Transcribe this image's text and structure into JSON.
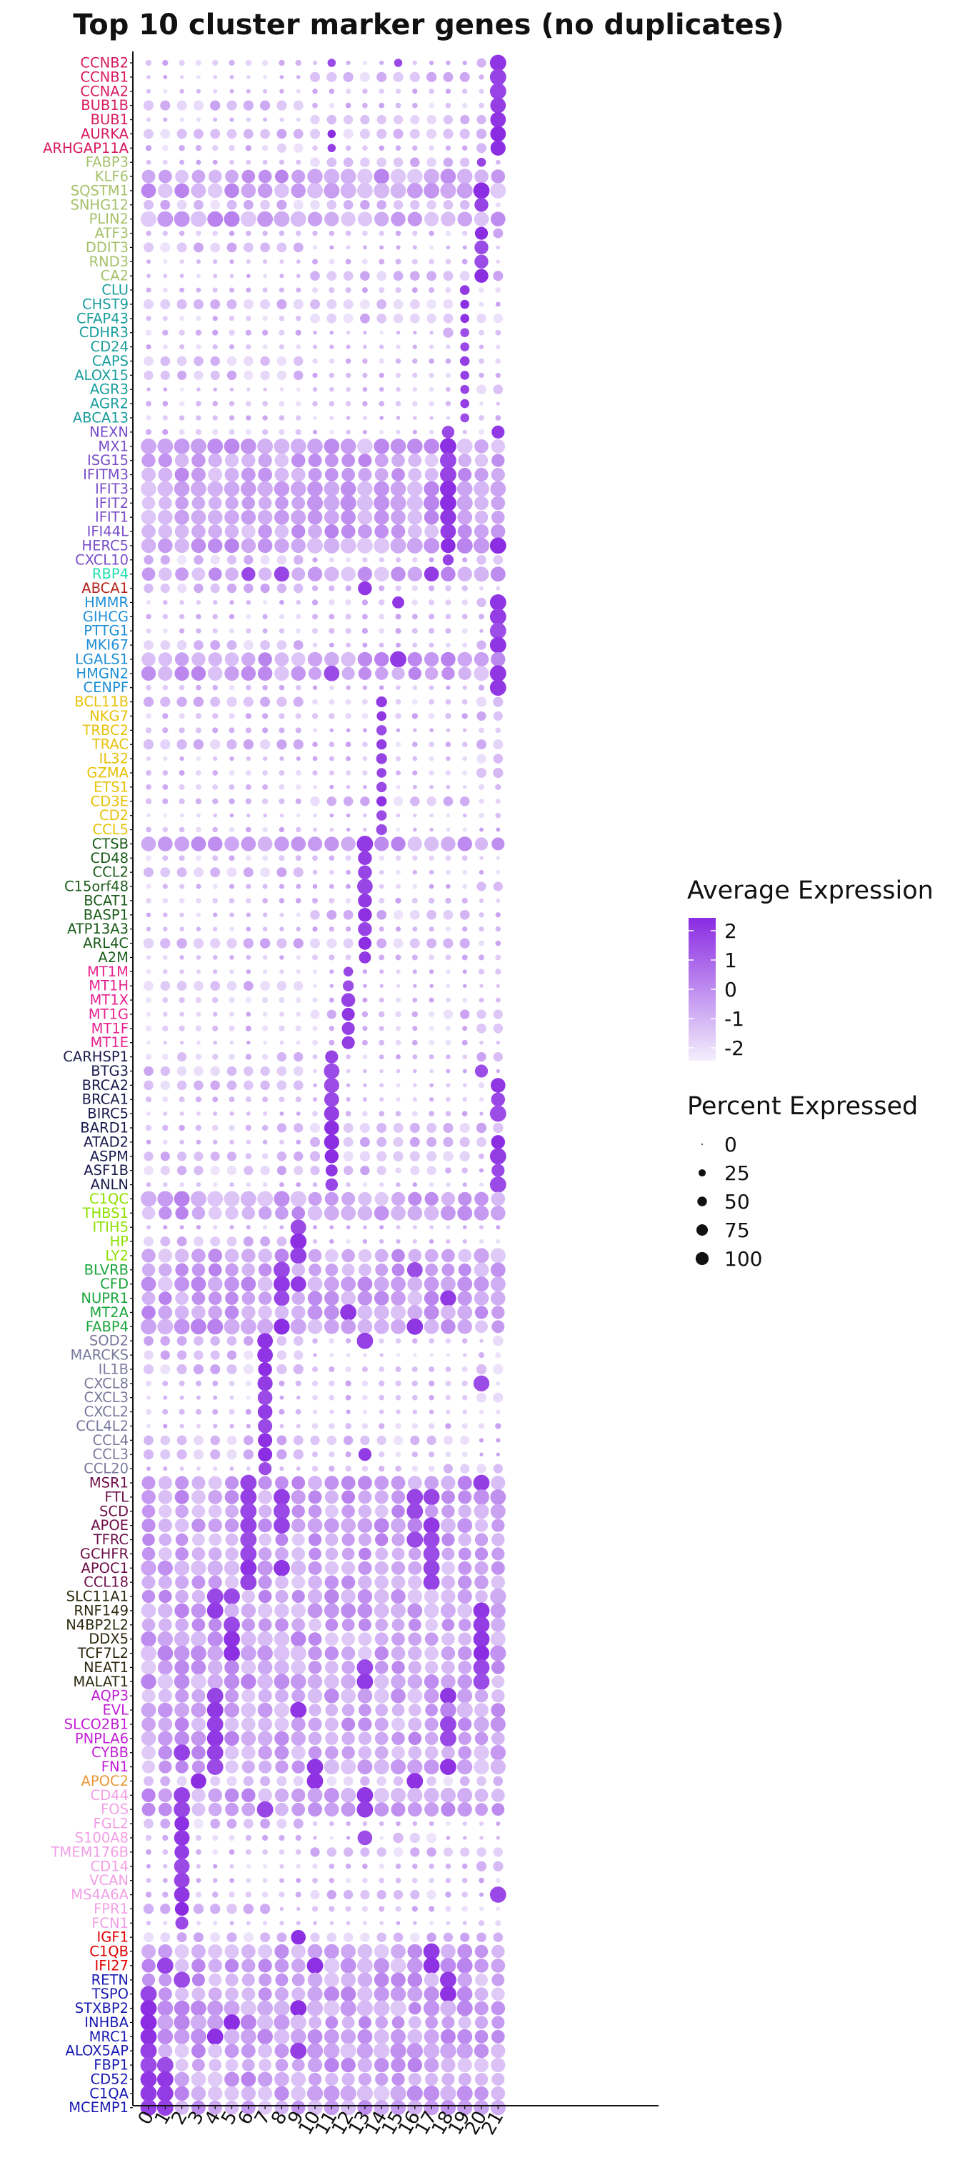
{
  "chart_data": {
    "type": "dotplot",
    "title": "Top 10 cluster marker genes (no duplicates)",
    "xlabel": "",
    "ylabel": "",
    "clusters": [
      "0",
      "1",
      "2",
      "3",
      "4",
      "5",
      "6",
      "7",
      "8",
      "9",
      "10",
      "11",
      "12",
      "13",
      "14",
      "15",
      "16",
      "17",
      "18",
      "19",
      "20",
      "21"
    ],
    "gene_groups": [
      {
        "color": "#d81b60",
        "genes": [
          "CCNB2",
          "CCNB1",
          "CCNA2",
          "BUB1B",
          "BUB1",
          "AURKA",
          "ARHGAP11A"
        ]
      },
      {
        "color": "#a6c26b",
        "genes": [
          "FABP3",
          "KLF6",
          "SQSTM1",
          "SNHG12",
          "PLIN2",
          "ATF3",
          "DDIT3",
          "RND3",
          "CA2"
        ]
      },
      {
        "color": "#1b9e9e",
        "genes": [
          "CLU",
          "CHST9",
          "CFAP43",
          "CDHR3",
          "CD24",
          "CAPS",
          "ALOX15",
          "AGR3",
          "AGR2",
          "ABCA13"
        ]
      },
      {
        "color": "#7a4ec9",
        "genes": [
          "NEXN",
          "MX1",
          "ISG15",
          "IFITM3",
          "IFIT3",
          "IFIT2",
          "IFIT1",
          "IFI44L",
          "HERC5",
          "CXCL10"
        ]
      },
      {
        "color": "#22e0b0",
        "genes": [
          "RBP4"
        ]
      },
      {
        "color": "#b3261e",
        "genes": [
          "ABCA1"
        ]
      },
      {
        "color": "#1e8fd6",
        "genes": [
          "HMMR",
          "GIHCG",
          "PTTG1",
          "MKI67",
          "LGALS1",
          "HMGN2",
          "CENPF"
        ]
      },
      {
        "color": "#e8c20b",
        "genes": [
          "BCL11B",
          "NKG7",
          "TRBC2",
          "TRAC",
          "IL32",
          "GZMA",
          "ETS1",
          "CD3E",
          "CD2",
          "CCL5"
        ]
      },
      {
        "color": "#1a5c1a",
        "genes": [
          "CTSB",
          "CD48",
          "CCL2",
          "C15orf48",
          "BCAT1",
          "BASP1",
          "ATP13A3",
          "ARL4C",
          "A2M"
        ]
      },
      {
        "color": "#e8238f",
        "genes": [
          "MT1M",
          "MT1H",
          "MT1X",
          "MT1G",
          "MT1F",
          "MT1E"
        ]
      },
      {
        "color": "#1a1a4e",
        "genes": [
          "CARHSP1",
          "BTG3",
          "BRCA2",
          "BRCA1",
          "BIRC5",
          "BARD1",
          "ATAD2",
          "ASPM",
          "ASF1B",
          "ANLN"
        ]
      },
      {
        "color": "#8ee000",
        "genes": [
          "C1QC",
          "THBS1",
          "ITIH5",
          "HP",
          "LY2"
        ]
      },
      {
        "color": "#1aa63c",
        "genes": [
          "BLVRB",
          "CFD",
          "NUPR1",
          "MT2A",
          "FABP4"
        ]
      },
      {
        "color": "#7a7a9e",
        "genes": [
          "SOD2",
          "MARCKS",
          "IL1B",
          "CXCL8",
          "CXCL3",
          "CXCL2",
          "CCL4L2",
          "CCL4",
          "CCL3",
          "CCL20"
        ]
      },
      {
        "color": "#6e0f4a",
        "genes": [
          "MSR1",
          "FTL",
          "SCD",
          "APOE",
          "TFRC",
          "GCHFR",
          "APOC1",
          "CCL18"
        ]
      },
      {
        "color": "#2d2a10",
        "genes": [
          "SLC11A1",
          "RNF149",
          "N4BP2L2",
          "DDX5",
          "TCF7L2",
          "NEAT1",
          "MALAT1"
        ]
      },
      {
        "color": "#c21fd6",
        "genes": [
          "AQP3",
          "EVL",
          "SLCO2B1",
          "PNPLA6",
          "CYBB",
          "FN1"
        ]
      },
      {
        "color": "#e89a3a",
        "genes": [
          "APOC2"
        ]
      },
      {
        "color": "#f2a0e6",
        "genes": [
          "CD44",
          "FOS",
          "FGL2",
          "S100A8",
          "TMEM176B",
          "CD14",
          "VCAN",
          "MS4A6A",
          "FPR1",
          "FCN1"
        ]
      },
      {
        "color": "#e00000",
        "genes": [
          "IGF1",
          "C1QB",
          "IFI27"
        ]
      },
      {
        "color": "#1a1ab3",
        "genes": [
          "RETN",
          "TSPO",
          "STXBP2",
          "INHBA",
          "MRC1",
          "ALOX5AP",
          "FBP1",
          "CD52",
          "C1QA",
          "MCEMP1"
        ]
      }
    ],
    "highlights": {
      "CCNB2": [
        [
          21,
          100
        ],
        [
          11,
          20
        ],
        [
          15,
          20
        ]
      ],
      "CCNB1": [
        [
          21,
          100
        ]
      ],
      "CCNA2": [
        [
          21,
          100
        ]
      ],
      "BUB1B": [
        [
          21,
          90
        ]
      ],
      "BUB1": [
        [
          21,
          90
        ]
      ],
      "AURKA": [
        [
          21,
          90
        ],
        [
          11,
          20
        ]
      ],
      "ARHGAP11A": [
        [
          21,
          85
        ],
        [
          11,
          20
        ]
      ],
      "FABP3": [
        [
          20,
          25
        ]
      ],
      "SQSTM1": [
        [
          20,
          100
        ]
      ],
      "SNHG12": [
        [
          20,
          70
        ]
      ],
      "ATF3": [
        [
          20,
          60
        ]
      ],
      "DDIT3": [
        [
          20,
          70
        ]
      ],
      "RND3": [
        [
          20,
          70
        ]
      ],
      "CA2": [
        [
          20,
          70
        ]
      ],
      "CLU": [
        [
          19,
          30
        ]
      ],
      "CHST9": [
        [
          19,
          25
        ]
      ],
      "CFAP43": [
        [
          19,
          25
        ]
      ],
      "CDHR3": [
        [
          19,
          25
        ]
      ],
      "CD24": [
        [
          19,
          25
        ]
      ],
      "CAPS": [
        [
          19,
          30
        ]
      ],
      "ALOX15": [
        [
          19,
          25
        ]
      ],
      "AGR3": [
        [
          19,
          25
        ]
      ],
      "AGR2": [
        [
          19,
          25
        ]
      ],
      "ABCA13": [
        [
          19,
          25
        ]
      ],
      "NEXN": [
        [
          18,
          55
        ],
        [
          21,
          60
        ]
      ],
      "MX1": [
        [
          18,
          100
        ]
      ],
      "ISG15": [
        [
          18,
          100
        ]
      ],
      "IFITM3": [
        [
          18,
          100
        ]
      ],
      "IFIT3": [
        [
          18,
          100
        ]
      ],
      "IFIT2": [
        [
          18,
          100
        ]
      ],
      "IFIT1": [
        [
          18,
          95
        ]
      ],
      "IFI44L": [
        [
          18,
          90
        ]
      ],
      "HERC5": [
        [
          18,
          80
        ],
        [
          21,
          100
        ]
      ],
      "CXCL10": [
        [
          18,
          40
        ]
      ],
      "RBP4": [
        [
          8,
          85
        ],
        [
          17,
          80
        ],
        [
          6,
          70
        ]
      ],
      "ABCA1": [
        [
          13,
          70
        ]
      ],
      "HMMR": [
        [
          21,
          100
        ],
        [
          15,
          50
        ]
      ],
      "GIHCG": [
        [
          21,
          100
        ]
      ],
      "PTTG1": [
        [
          21,
          100
        ]
      ],
      "MKI67": [
        [
          21,
          100
        ]
      ],
      "LGALS1": [
        [
          15,
          100
        ]
      ],
      "HMGN2": [
        [
          21,
          100
        ],
        [
          11,
          90
        ]
      ],
      "CENPF": [
        [
          21,
          100
        ]
      ],
      "BCL11B": [
        [
          14,
          40
        ]
      ],
      "NKG7": [
        [
          14,
          30
        ]
      ],
      "TRBC2": [
        [
          14,
          35
        ]
      ],
      "TRAC": [
        [
          14,
          35
        ]
      ],
      "IL32": [
        [
          14,
          40
        ]
      ],
      "GZMA": [
        [
          14,
          30
        ]
      ],
      "ETS1": [
        [
          14,
          35
        ]
      ],
      "CD3E": [
        [
          14,
          35
        ]
      ],
      "CD2": [
        [
          14,
          35
        ]
      ],
      "CCL5": [
        [
          14,
          40
        ]
      ],
      "CTSB": [
        [
          13,
          100
        ]
      ],
      "CD48": [
        [
          13,
          70
        ]
      ],
      "CCL2": [
        [
          13,
          70
        ]
      ],
      "C15orf48": [
        [
          13,
          90
        ]
      ],
      "BCAT1": [
        [
          13,
          70
        ]
      ],
      "BASP1": [
        [
          13,
          70
        ]
      ],
      "ATP13A3": [
        [
          13,
          70
        ]
      ],
      "ARL4C": [
        [
          13,
          60
        ]
      ],
      "A2M": [
        [
          13,
          50
        ]
      ],
      "MT1M": [
        [
          12,
          30
        ]
      ],
      "MT1H": [
        [
          12,
          40
        ]
      ],
      "MT1X": [
        [
          12,
          70
        ]
      ],
      "MT1G": [
        [
          12,
          60
        ]
      ],
      "MT1F": [
        [
          12,
          60
        ]
      ],
      "MT1E": [
        [
          12,
          60
        ]
      ],
      "CARHSP1": [
        [
          11,
          60
        ]
      ],
      "BTG3": [
        [
          11,
          90
        ],
        [
          20,
          60
        ]
      ],
      "BRCA2": [
        [
          11,
          85
        ],
        [
          21,
          80
        ]
      ],
      "BRCA1": [
        [
          11,
          80
        ],
        [
          21,
          70
        ]
      ],
      "BIRC5": [
        [
          11,
          85
        ],
        [
          21,
          100
        ]
      ],
      "BARD1": [
        [
          11,
          80
        ]
      ],
      "ATAD2": [
        [
          11,
          85
        ],
        [
          21,
          70
        ]
      ],
      "ASPM": [
        [
          11,
          70
        ],
        [
          21,
          100
        ]
      ],
      "ASF1B": [
        [
          11,
          50
        ],
        [
          21,
          60
        ]
      ],
      "ANLN": [
        [
          11,
          55
        ],
        [
          21,
          100
        ]
      ],
      "HP": [
        [
          9,
          100
        ]
      ],
      "ITIH5": [
        [
          9,
          90
        ]
      ],
      "LY2": [
        [
          9,
          100
        ]
      ],
      "BLVRB": [
        [
          8,
          100
        ],
        [
          16,
          90
        ]
      ],
      "CFD": [
        [
          8,
          100
        ],
        [
          9,
          90
        ]
      ],
      "NUPR1": [
        [
          8,
          90
        ],
        [
          18,
          95
        ]
      ],
      "MT2A": [
        [
          12,
          100
        ]
      ],
      "FABP4": [
        [
          16,
          100
        ],
        [
          8,
          95
        ]
      ],
      "SOD2": [
        [
          7,
          90
        ],
        [
          13,
          100
        ]
      ],
      "MARCKS": [
        [
          7,
          90
        ]
      ],
      "IL1B": [
        [
          7,
          70
        ]
      ],
      "CXCL8": [
        [
          7,
          85
        ],
        [
          20,
          95
        ]
      ],
      "CXCL3": [
        [
          7,
          80
        ]
      ],
      "CXCL2": [
        [
          7,
          80
        ]
      ],
      "CCL4L2": [
        [
          7,
          75
        ]
      ],
      "CCL4": [
        [
          7,
          75
        ]
      ],
      "CCL3": [
        [
          7,
          75
        ],
        [
          13,
          60
        ]
      ],
      "CCL20": [
        [
          7,
          60
        ]
      ],
      "MSR1": [
        [
          20,
          100
        ],
        [
          6,
          100
        ]
      ],
      "FTL": [
        [
          6,
          100
        ],
        [
          8,
          100
        ],
        [
          16,
          100
        ],
        [
          17,
          100
        ]
      ],
      "SCD": [
        [
          6,
          100
        ],
        [
          8,
          100
        ],
        [
          16,
          100
        ]
      ],
      "APOE": [
        [
          6,
          100
        ],
        [
          17,
          100
        ],
        [
          8,
          100
        ]
      ],
      "TFRC": [
        [
          6,
          100
        ],
        [
          16,
          100
        ],
        [
          17,
          100
        ]
      ],
      "GCHFR": [
        [
          6,
          100
        ],
        [
          17,
          100
        ]
      ],
      "APOC1": [
        [
          6,
          100
        ],
        [
          8,
          100
        ],
        [
          17,
          100
        ]
      ],
      "CCL18": [
        [
          6,
          100
        ],
        [
          17,
          100
        ]
      ],
      "SLC11A1": [
        [
          4,
          100
        ],
        [
          5,
          100
        ]
      ],
      "RNF149": [
        [
          4,
          100
        ],
        [
          20,
          100
        ]
      ],
      "N4BP2L2": [
        [
          5,
          100
        ],
        [
          20,
          100
        ]
      ],
      "DDX5": [
        [
          20,
          100
        ],
        [
          5,
          100
        ]
      ],
      "TCF7L2": [
        [
          5,
          100
        ],
        [
          20,
          95
        ]
      ],
      "NEAT1": [
        [
          13,
          100
        ],
        [
          20,
          100
        ]
      ],
      "MALAT1": [
        [
          20,
          100
        ],
        [
          13,
          100
        ]
      ],
      "AQP3": [
        [
          4,
          100
        ],
        [
          18,
          100
        ]
      ],
      "EVL": [
        [
          4,
          100
        ],
        [
          9,
          100
        ]
      ],
      "SLCO2B1": [
        [
          4,
          100
        ],
        [
          18,
          100
        ]
      ],
      "PNPLA6": [
        [
          4,
          100
        ],
        [
          18,
          100
        ]
      ],
      "CYBB": [
        [
          2,
          100
        ],
        [
          4,
          100
        ]
      ],
      "FN1": [
        [
          4,
          100
        ],
        [
          10,
          100
        ],
        [
          18,
          100
        ]
      ],
      "APOC2": [
        [
          10,
          100
        ],
        [
          16,
          100
        ],
        [
          3,
          90
        ]
      ],
      "CD44": [
        [
          2,
          100
        ],
        [
          13,
          100
        ]
      ],
      "FOS": [
        [
          2,
          100
        ],
        [
          7,
          100
        ],
        [
          13,
          100
        ]
      ],
      "FGL2": [
        [
          2,
          80
        ]
      ],
      "S100A8": [
        [
          2,
          90
        ],
        [
          13,
          80
        ]
      ],
      "TMEM176B": [
        [
          2,
          80
        ]
      ],
      "CD14": [
        [
          2,
          90
        ]
      ],
      "VCAN": [
        [
          2,
          90
        ]
      ],
      "MS4A6A": [
        [
          2,
          90
        ],
        [
          21,
          100
        ]
      ],
      "FPR1": [
        [
          2,
          70
        ]
      ],
      "FCN1": [
        [
          2,
          60
        ]
      ],
      "IGF1": [
        [
          9,
          80
        ]
      ],
      "C1QB": [
        [
          17,
          100
        ]
      ],
      "IFI27": [
        [
          1,
          100
        ],
        [
          10,
          100
        ],
        [
          17,
          100
        ]
      ],
      "RETN": [
        [
          2,
          100
        ],
        [
          18,
          100
        ]
      ],
      "TSPO": [
        [
          0,
          100
        ],
        [
          18,
          100
        ]
      ],
      "STXBP2": [
        [
          0,
          100
        ],
        [
          9,
          100
        ]
      ],
      "INHBA": [
        [
          0,
          100
        ],
        [
          5,
          100
        ]
      ],
      "MRC1": [
        [
          0,
          100
        ],
        [
          4,
          100
        ]
      ],
      "ALOX5AP": [
        [
          0,
          100
        ],
        [
          9,
          100
        ]
      ],
      "FBP1": [
        [
          0,
          100
        ],
        [
          1,
          100
        ]
      ],
      "CD52": [
        [
          0,
          100
        ],
        [
          1,
          100
        ]
      ],
      "C1QA": [
        [
          0,
          100
        ],
        [
          1,
          100
        ]
      ],
      "MCEMP1": [
        [
          0,
          100
        ],
        [
          1,
          100
        ]
      ]
    },
    "broad_rows": [
      "KLF6",
      "SQSTM1",
      "PLIN2",
      "MX1",
      "ISG15",
      "IFITM3",
      "IFIT3",
      "IFIT2",
      "IFIT1",
      "IFI44L",
      "HERC5",
      "RBP4",
      "LGALS1",
      "HMGN2",
      "CTSB",
      "C1QC",
      "THBS1",
      "LY2",
      "BLVRB",
      "CFD",
      "NUPR1",
      "MT2A",
      "FABP4",
      "MSR1",
      "FTL",
      "SCD",
      "APOE",
      "TFRC",
      "GCHFR",
      "APOC1",
      "CCL18",
      "SLC11A1",
      "RNF149",
      "N4BP2L2",
      "DDX5",
      "TCF7L2",
      "NEAT1",
      "MALAT1",
      "AQP3",
      "EVL",
      "SLCO2B1",
      "PNPLA6",
      "CYBB",
      "FN1",
      "CD44",
      "FOS",
      "C1QB",
      "IFI27",
      "RETN",
      "TSPO",
      "STXBP2",
      "INHBA",
      "MRC1",
      "ALOX5AP",
      "FBP1",
      "CD52",
      "C1QA",
      "MCEMP1"
    ],
    "legend": {
      "color_title": "Average Expression",
      "color_ticks": [
        "2",
        "1",
        "0",
        "-1",
        "-2"
      ],
      "color_low": "#f3eefc",
      "color_high": "#8a2be2",
      "size_title": "Percent Expressed",
      "size_ticks": [
        "0",
        "25",
        "50",
        "75",
        "100"
      ]
    }
  }
}
